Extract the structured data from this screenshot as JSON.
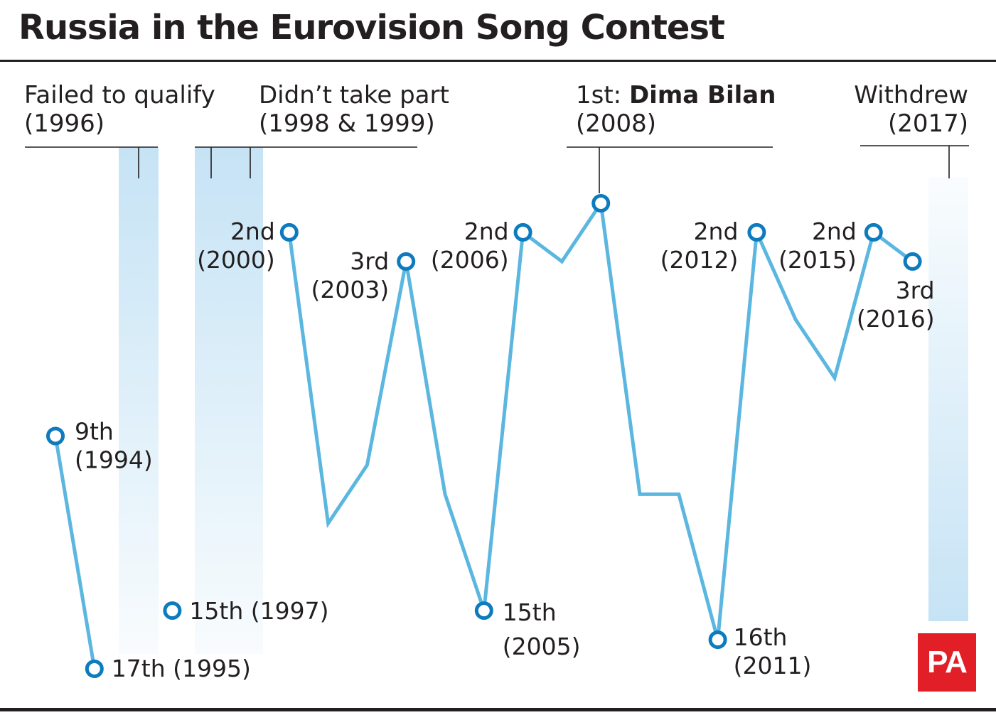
{
  "title": "Russia in the Eurovision Song Contest",
  "logo_text": "PA",
  "colors": {
    "line": "#5bb7e0",
    "marker": "#0d7bbd",
    "band": "#c6e3f5",
    "logo": "#e21f26",
    "text": "#231f20"
  },
  "annotations": {
    "failed": "Failed to qualify",
    "failed_year": "(1996)",
    "notpart": "Didn’t take part",
    "notpart_years": "(1998 & 1999)",
    "winner_prefix": "1st: ",
    "winner_name": "Dima Bilan",
    "winner_year": "(2008)",
    "withdrew": "Withdrew",
    "withdrew_year": "(2017)"
  },
  "chart_data": {
    "type": "line",
    "title": "Russia in the Eurovision Song Contest",
    "xlabel": "",
    "ylabel": "",
    "x_range": [
      1994,
      2017
    ],
    "y_range": [
      1,
      17
    ],
    "y_inverted": true,
    "segments": [
      [
        1994,
        1995
      ],
      [
        1997
      ],
      [
        2000,
        2001,
        2002,
        2003,
        2004,
        2005,
        2006,
        2007,
        2008,
        2009,
        2010,
        2011,
        2012,
        2013,
        2014,
        2015,
        2016
      ]
    ],
    "points": [
      {
        "year": 1994,
        "place": 9
      },
      {
        "year": 1995,
        "place": 17
      },
      {
        "year": 1997,
        "place": 15
      },
      {
        "year": 2000,
        "place": 2
      },
      {
        "year": 2001,
        "place": 12
      },
      {
        "year": 2002,
        "place": 10
      },
      {
        "year": 2003,
        "place": 3
      },
      {
        "year": 2004,
        "place": 11
      },
      {
        "year": 2005,
        "place": 15
      },
      {
        "year": 2006,
        "place": 2
      },
      {
        "year": 2007,
        "place": 3
      },
      {
        "year": 2008,
        "place": 1
      },
      {
        "year": 2009,
        "place": 11
      },
      {
        "year": 2010,
        "place": 11
      },
      {
        "year": 2011,
        "place": 16
      },
      {
        "year": 2012,
        "place": 2
      },
      {
        "year": 2013,
        "place": 5
      },
      {
        "year": 2014,
        "place": 7
      },
      {
        "year": 2015,
        "place": 2
      },
      {
        "year": 2016,
        "place": 3
      }
    ],
    "labeled_points": [
      {
        "year": 1994,
        "place": 9,
        "lines": [
          "9th",
          "(1994)"
        ]
      },
      {
        "year": 1995,
        "place": 17,
        "lines": [
          "17th (1995)"
        ]
      },
      {
        "year": 1997,
        "place": 15,
        "lines": [
          "15th (1997)"
        ]
      },
      {
        "year": 2000,
        "place": 2,
        "lines": [
          "2nd",
          "(2000)"
        ]
      },
      {
        "year": 2003,
        "place": 3,
        "lines": [
          "3rd",
          "(2003)"
        ]
      },
      {
        "year": 2005,
        "place": 15,
        "lines": [
          "15th",
          "(2005)"
        ]
      },
      {
        "year": 2006,
        "place": 2,
        "lines": [
          "2nd",
          "(2006)"
        ]
      },
      {
        "year": 2008,
        "place": 1,
        "lines": []
      },
      {
        "year": 2011,
        "place": 16,
        "lines": [
          "16th",
          "(2011)"
        ]
      },
      {
        "year": 2012,
        "place": 2,
        "lines": [
          "2nd",
          "(2012)"
        ]
      },
      {
        "year": 2015,
        "place": 2,
        "lines": [
          "2nd",
          "(2015)"
        ]
      },
      {
        "year": 2016,
        "place": 3,
        "lines": [
          "3rd",
          "(2016)"
        ]
      }
    ],
    "gaps": [
      {
        "years": [
          1996
        ],
        "reason": "Failed to qualify"
      },
      {
        "years": [
          1998,
          1999
        ],
        "reason": "Didn’t take part"
      },
      {
        "years": [
          2017
        ],
        "reason": "Withdrew"
      }
    ],
    "grid": false,
    "legend": "none"
  }
}
